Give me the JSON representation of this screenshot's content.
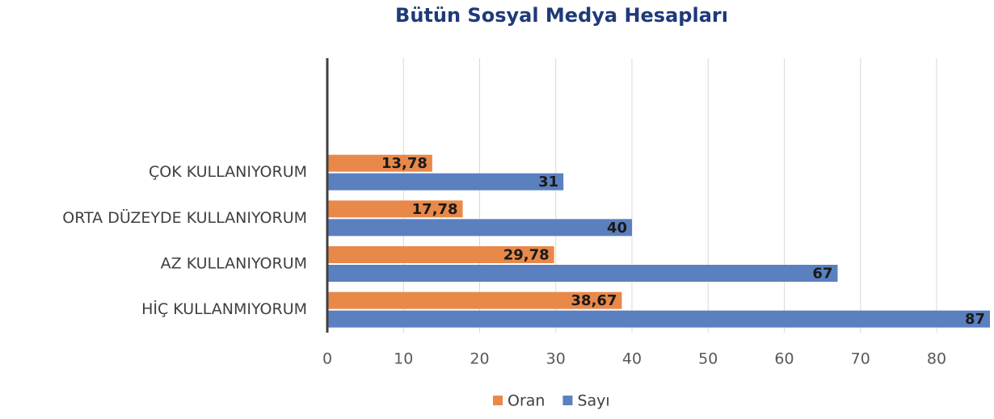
{
  "chart_data": {
    "type": "hbar",
    "title": "Bütün Sosyal Medya Hesapları",
    "categories": [
      null,
      null,
      "ÇOK KULLANIYORUM",
      "ORTA DÜZEYDE KULLANIYORUM",
      "AZ KULLANIYORUM",
      "HİÇ KULLANMIYORUM"
    ],
    "series": [
      {
        "name": "Oran",
        "color": "#e8894a",
        "values": [
          null,
          null,
          13.78,
          17.78,
          29.78,
          38.67
        ],
        "value_labels": [
          null,
          null,
          "13,78",
          "17,78",
          "29,78",
          "38,67"
        ]
      },
      {
        "name": "Sayı",
        "color": "#5b80c0",
        "values": [
          null,
          null,
          31,
          40,
          67,
          87
        ]
      }
    ],
    "xlim": [
      0,
      87
    ],
    "xticks": [
      0,
      10,
      20,
      30,
      40,
      50,
      60,
      70,
      80
    ],
    "grid": true,
    "legend": "bottom"
  }
}
